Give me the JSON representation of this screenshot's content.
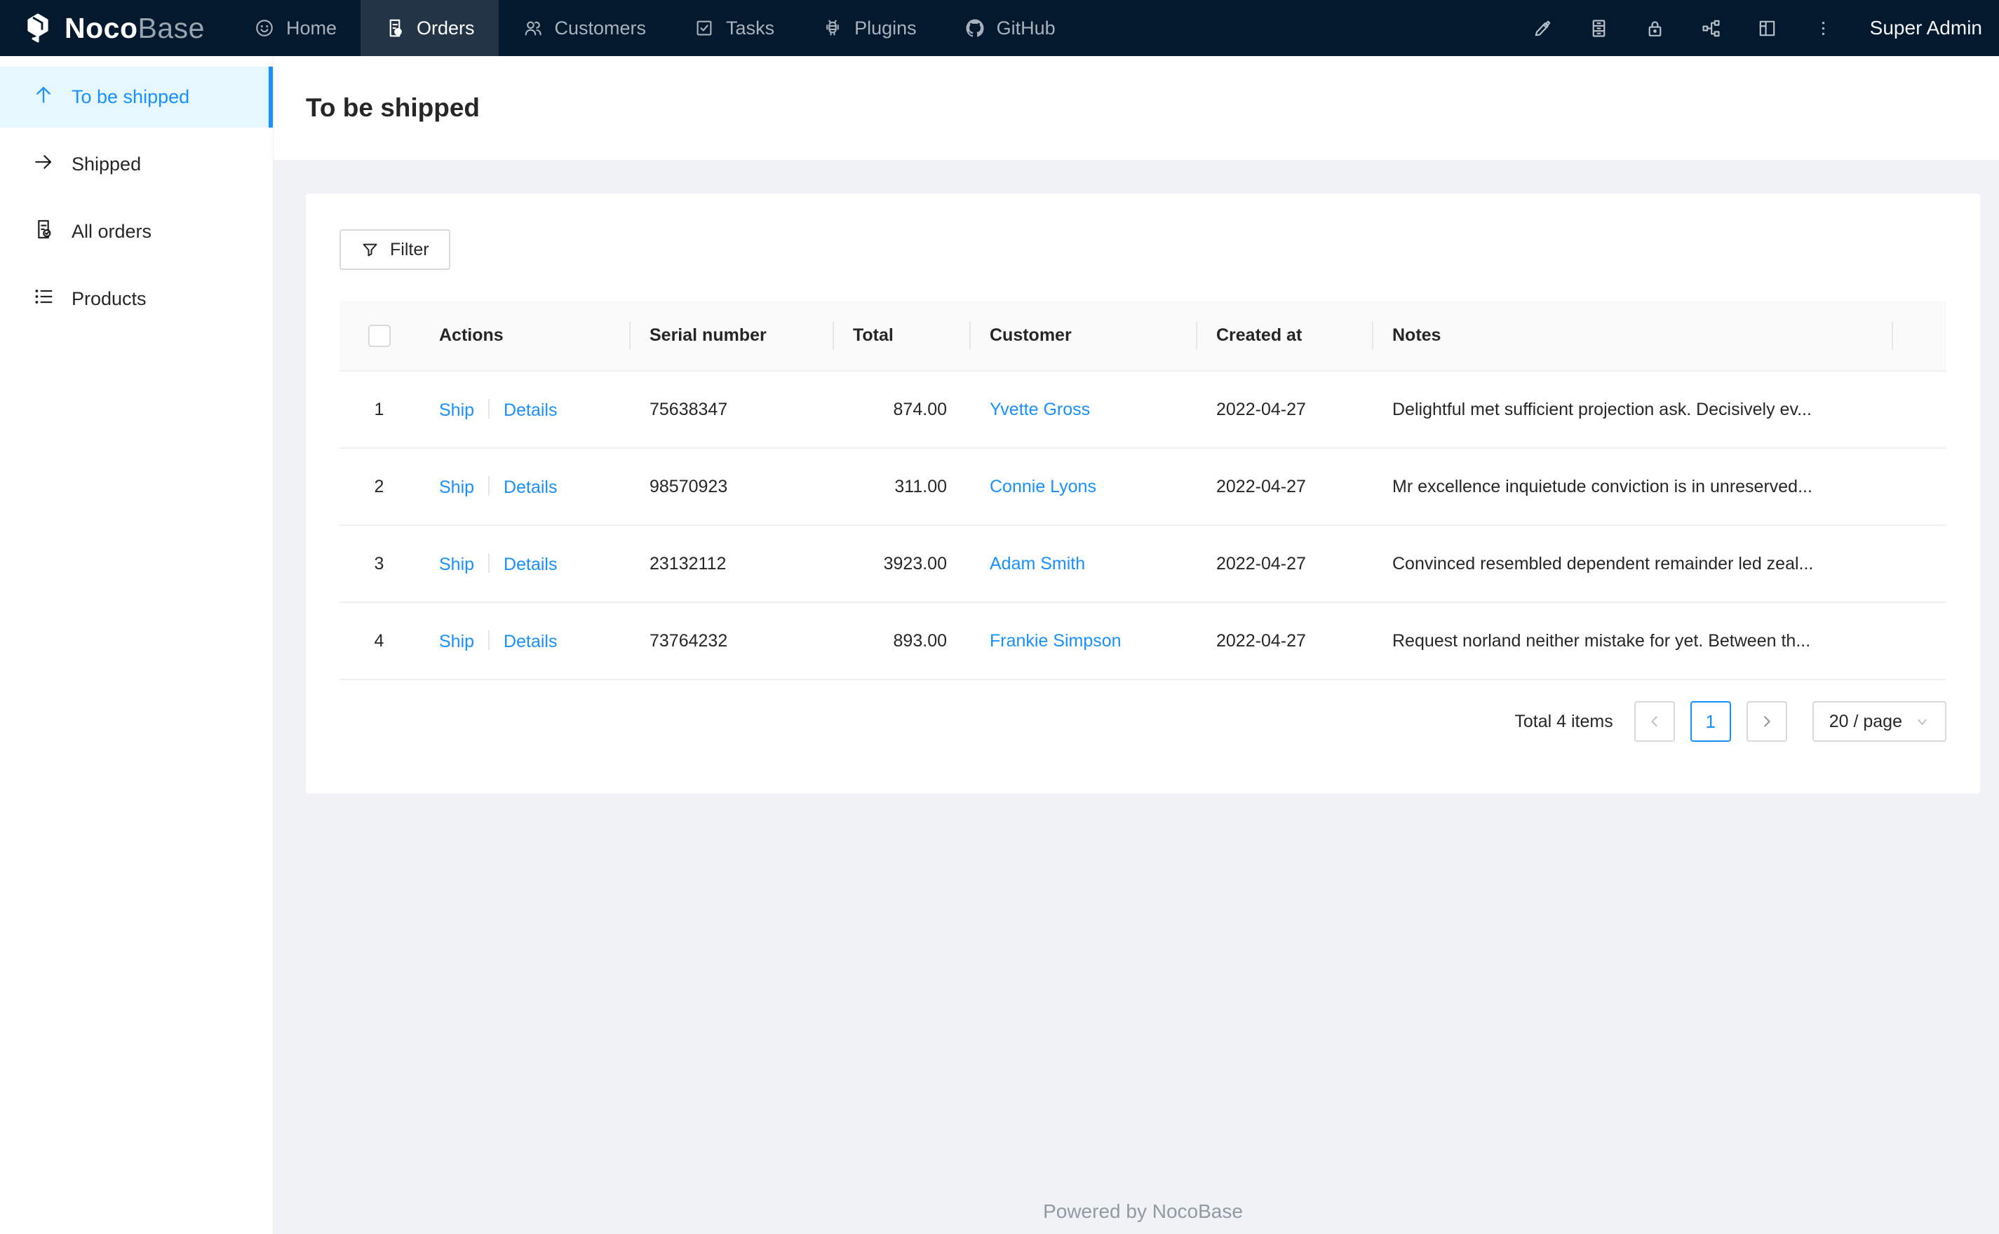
{
  "navbar": {
    "brand": {
      "bold": "Noco",
      "light": "Base"
    },
    "items": [
      {
        "label": "Home",
        "icon": "home",
        "active": false
      },
      {
        "label": "Orders",
        "icon": "orders",
        "active": true
      },
      {
        "label": "Customers",
        "icon": "customers",
        "active": false
      },
      {
        "label": "Tasks",
        "icon": "tasks",
        "active": false
      },
      {
        "label": "Plugins",
        "icon": "plugins",
        "active": false
      },
      {
        "label": "GitHub",
        "icon": "github",
        "active": false
      }
    ],
    "right_icons": [
      "highlighter",
      "server",
      "lock",
      "org-chart",
      "layout",
      "more"
    ],
    "user": "Super Admin"
  },
  "sidebar": {
    "items": [
      {
        "label": "To be shipped",
        "icon": "arrow-up",
        "active": true
      },
      {
        "label": "Shipped",
        "icon": "arrow-right",
        "active": false
      },
      {
        "label": "All orders",
        "icon": "doc-check",
        "active": false
      },
      {
        "label": "Products",
        "icon": "list",
        "active": false
      }
    ]
  },
  "page": {
    "title": "To be shipped"
  },
  "toolbar": {
    "filter_label": "Filter"
  },
  "table": {
    "headers": [
      "Actions",
      "Serial number",
      "Total",
      "Customer",
      "Created at",
      "Notes"
    ],
    "action_labels": [
      "Ship",
      "Details"
    ],
    "rows": [
      {
        "index": "1",
        "serial": "75638347",
        "total": "874.00",
        "customer": "Yvette Gross",
        "created_at": "2022-04-27",
        "notes": "Delightful met sufficient projection ask. Decisively ev..."
      },
      {
        "index": "2",
        "serial": "98570923",
        "total": "311.00",
        "customer": "Connie Lyons",
        "created_at": "2022-04-27",
        "notes": "Mr excellence inquietude conviction is in unreserved..."
      },
      {
        "index": "3",
        "serial": "23132112",
        "total": "3923.00",
        "customer": "Adam Smith",
        "created_at": "2022-04-27",
        "notes": "Convinced resembled dependent remainder led zeal..."
      },
      {
        "index": "4",
        "serial": "73764232",
        "total": "893.00",
        "customer": "Frankie Simpson",
        "created_at": "2022-04-27",
        "notes": "Request norland neither mistake for yet. Between th..."
      }
    ]
  },
  "pagination": {
    "total_label": "Total 4 items",
    "current_page": "1",
    "page_size": "20 / page"
  },
  "footer": {
    "text": "Powered by NocoBase"
  },
  "colors": {
    "accent": "#1890ff",
    "navbar_bg": "#04192d",
    "sidebar_active_bg": "#e6f7ff",
    "content_bg": "#f0f2f5"
  }
}
